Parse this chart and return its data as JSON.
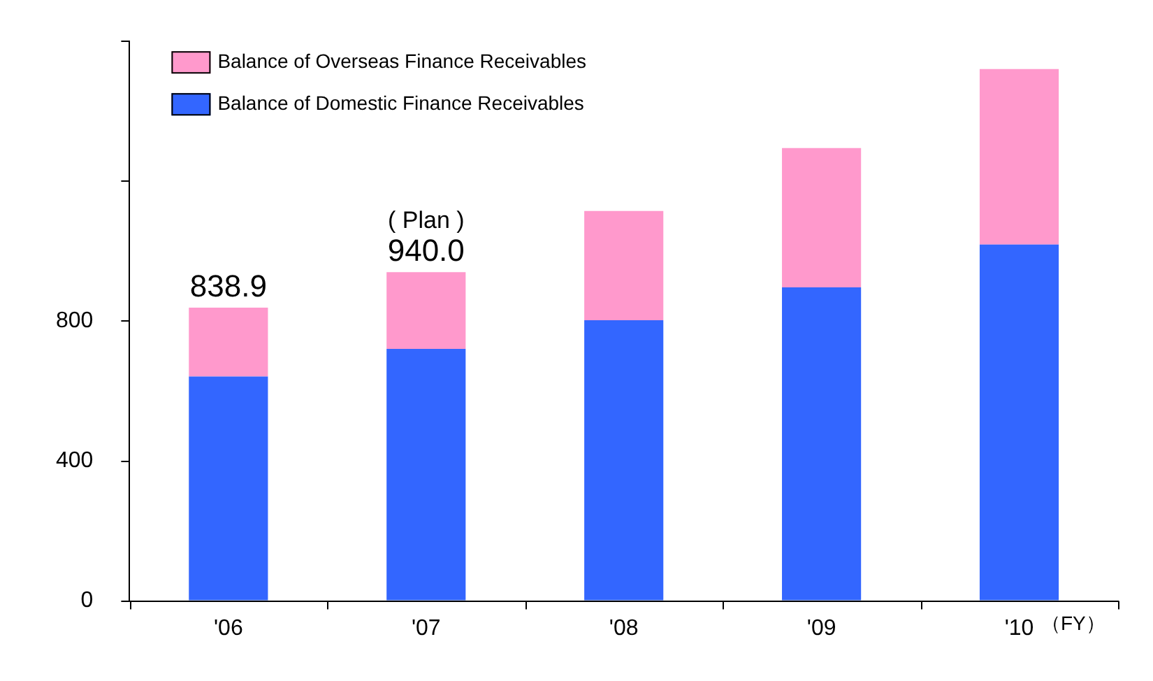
{
  "chart_data": {
    "type": "bar",
    "stacked": true,
    "categories": [
      "'06",
      "'07",
      "'08",
      "'09",
      "'10"
    ],
    "series": [
      {
        "name": "Balance of Domestic Finance Receivables",
        "color": "#3366ff",
        "values": [
          642,
          721,
          803,
          897,
          1019
        ]
      },
      {
        "name": "Balance of Overseas Finance Receivables",
        "color": "#ff99cc",
        "values": [
          197,
          219,
          312,
          398,
          502
        ]
      }
    ],
    "totals": [
      "838.9",
      "940.0",
      null,
      null,
      null
    ],
    "annotations": [
      {
        "text": "( Plan )",
        "x": "'07",
        "y": 940.0
      }
    ],
    "xlabel": "（FY）",
    "ylim": [
      0,
      1600
    ],
    "yticks": [
      0,
      400,
      800,
      {
        "value": 1200,
        "label": null
      },
      {
        "value": 1600,
        "label": null
      }
    ],
    "grid": false,
    "legend": "top left"
  }
}
